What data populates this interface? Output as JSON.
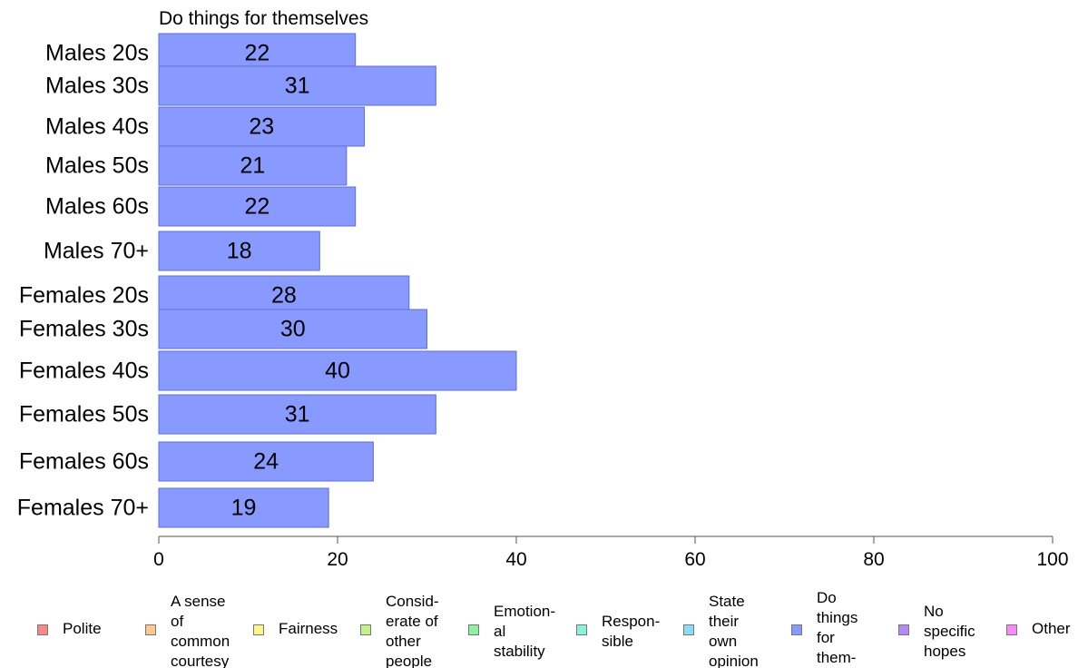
{
  "chart_data": {
    "type": "bar",
    "orientation": "horizontal",
    "title": "Do things for themselves",
    "categories": [
      "Males 20s",
      "Males 30s",
      "Males 40s",
      "Males 50s",
      "Males 60s",
      "Males 70+",
      "Females 20s",
      "Females 30s",
      "Females 40s",
      "Females 50s",
      "Females 60s",
      "Females 70+"
    ],
    "series": [
      {
        "values": [
          22,
          31,
          23,
          21,
          22,
          18,
          28,
          30,
          40,
          31,
          24,
          19
        ]
      }
    ],
    "data_labels": [
      "22",
      "31",
      "23",
      "21",
      "22",
      "18",
      "28",
      "30",
      "40",
      "31",
      "24",
      "19"
    ],
    "xlim": [
      0,
      100
    ],
    "xticks": [
      0,
      20,
      40,
      60,
      80,
      100
    ],
    "tick_labels": [
      "0",
      "20",
      "40",
      "60",
      "80",
      "100"
    ],
    "grid": false,
    "legend_position": "bottom",
    "bar_color": "#8899ff",
    "bar_edge_color": "#5f6fd0"
  },
  "legend": {
    "items": [
      {
        "label": "Polite",
        "color": "#f48a8a"
      },
      {
        "label": "A sense\nof\ncommon\ncourtesy",
        "color": "#f9c88a"
      },
      {
        "label": "Fairness",
        "color": "#fbf58a"
      },
      {
        "label": "Consid-\nerate of\nother\npeople",
        "color": "#c2f08a"
      },
      {
        "label": "Emotion-\nal\nstability",
        "color": "#8af2a0"
      },
      {
        "label": "Respon-\nsible",
        "color": "#8af2dc"
      },
      {
        "label": "State\ntheir\nown\nopinion",
        "color": "#8adcf8"
      },
      {
        "label": "Do\nthings\nfor\nthem-\nselves",
        "color": "#8899ff"
      },
      {
        "label": "No\nspecific\nhopes",
        "color": "#b08af8"
      },
      {
        "label": "Other",
        "color": "#f88af4"
      }
    ]
  }
}
